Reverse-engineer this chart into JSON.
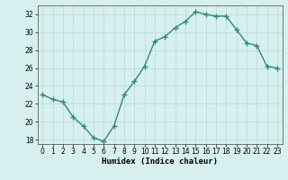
{
  "x": [
    0,
    1,
    2,
    3,
    4,
    5,
    6,
    7,
    8,
    9,
    10,
    11,
    12,
    13,
    14,
    15,
    16,
    17,
    18,
    19,
    20,
    21,
    22,
    23
  ],
  "y": [
    23.0,
    22.5,
    22.2,
    20.5,
    19.5,
    18.2,
    17.8,
    19.5,
    23.0,
    24.5,
    26.2,
    29.0,
    29.5,
    30.5,
    31.2,
    32.3,
    32.0,
    31.8,
    31.8,
    30.3,
    28.8,
    28.5,
    26.2,
    26.0
  ],
  "line_color": "#2e8b7a",
  "marker": "+",
  "marker_size": 4,
  "bg_color": "#d6f0ef",
  "grid_color": "#b8d8d5",
  "xlabel": "Humidex (Indice chaleur)",
  "ylim": [
    17.5,
    33.0
  ],
  "xlim": [
    -0.5,
    23.5
  ],
  "yticks": [
    18,
    20,
    22,
    24,
    26,
    28,
    30,
    32
  ],
  "xticks": [
    0,
    1,
    2,
    3,
    4,
    5,
    6,
    7,
    8,
    9,
    10,
    11,
    12,
    13,
    14,
    15,
    16,
    17,
    18,
    19,
    20,
    21,
    22,
    23
  ],
  "xlabel_fontsize": 6.5,
  "tick_fontsize": 5.5,
  "line_width": 1.0,
  "marker_color": "#2e8b7a"
}
